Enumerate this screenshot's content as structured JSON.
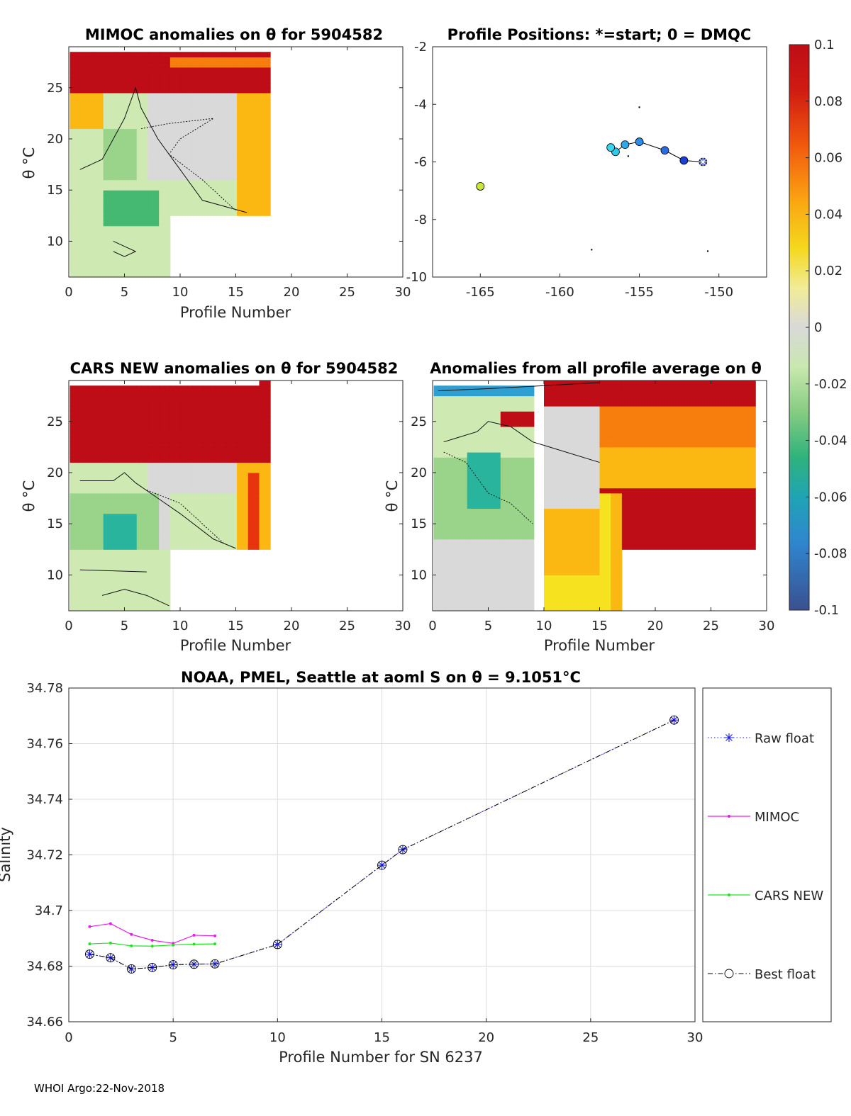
{
  "colors": {
    "ramp": [
      "#3a5a9b",
      "#3f78c4",
      "#2e9fd0",
      "#29b49e",
      "#45b872",
      "#9ad48a",
      "#cfe9b3",
      "#d9d9d9",
      "#eef08e",
      "#f7e21f",
      "#fbb812",
      "#f77d0c",
      "#e8330f",
      "#be0d16"
    ],
    "raw": "#1a1ae6",
    "mimoc": "#e61ee6",
    "cars": "#1ee61e",
    "best": "#000000"
  },
  "chart_data": [
    {
      "type": "heatmap",
      "title": "MIMOC anomalies on θ  for 5904582",
      "xlabel": "Profile Number",
      "ylabel": "θ °C",
      "xlim": [
        0,
        30
      ],
      "ylim": [
        6.5,
        29
      ],
      "xticks": [
        "0",
        "5",
        "10",
        "15",
        "20",
        "25",
        "30"
      ],
      "yticks": [
        "10",
        "15",
        "20",
        "25"
      ]
    },
    {
      "type": "scatter",
      "title": "Profile Positions: *=start; 0 = DMQC",
      "xlim": [
        -168,
        -147
      ],
      "ylim": [
        -10,
        -2
      ],
      "xticks": [
        "-165",
        "-160",
        "-155",
        "-150"
      ],
      "yticks": [
        "-2",
        "-4",
        "-6",
        "-8",
        "-10"
      ],
      "points": [
        {
          "lon": -151.0,
          "lat": -6.0,
          "color": "#1a3fcf",
          "start": true
        },
        {
          "lon": -152.2,
          "lat": -5.95,
          "color": "#1a3fcf",
          "start": false
        },
        {
          "lon": -153.4,
          "lat": -5.6,
          "color": "#2a6be0",
          "start": false
        },
        {
          "lon": -155.0,
          "lat": -5.3,
          "color": "#2e8be8",
          "start": false
        },
        {
          "lon": -155.9,
          "lat": -5.4,
          "color": "#2fa8ea",
          "start": false
        },
        {
          "lon": -156.5,
          "lat": -5.65,
          "color": "#32c8ec",
          "start": false
        },
        {
          "lon": -156.8,
          "lat": -5.5,
          "color": "#38d6ee",
          "start": false
        },
        {
          "lon": -165.0,
          "lat": -6.85,
          "color": "#c8e63c",
          "start": false
        }
      ]
    },
    {
      "type": "heatmap",
      "title": "CARS NEW anomalies on θ for 5904582",
      "xlabel": "Profile Number",
      "ylabel": "θ °C",
      "xlim": [
        0,
        30
      ],
      "ylim": [
        6.5,
        29
      ],
      "xticks": [
        "0",
        "5",
        "10",
        "15",
        "20",
        "25",
        "30"
      ],
      "yticks": [
        "10",
        "15",
        "20",
        "25"
      ]
    },
    {
      "type": "heatmap",
      "title": "Anomalies from all profile average on θ",
      "xlabel": "Profile Number",
      "ylabel": "θ °C",
      "xlim": [
        0,
        30
      ],
      "ylim": [
        6.5,
        29
      ],
      "xticks": [
        "0",
        "5",
        "10",
        "15",
        "20",
        "25",
        "30"
      ],
      "yticks": [
        "10",
        "15",
        "20",
        "25"
      ]
    },
    {
      "type": "colorbar",
      "ticks": [
        "0.1",
        "0.08",
        "0.06",
        "0.04",
        "0.02",
        "0",
        "-0.02",
        "-0.04",
        "-0.06",
        "-0.08",
        "-0.1"
      ],
      "range": [
        -0.1,
        0.1
      ]
    },
    {
      "type": "line",
      "title": "NOAA, PMEL, Seattle at aoml S on θ = 9.1051°C",
      "xlabel": "Profile Number for SN 6237",
      "ylabel": "Salinity",
      "xlim": [
        0,
        30
      ],
      "ylim": [
        34.66,
        34.78
      ],
      "xticks": [
        "0",
        "5",
        "10",
        "15",
        "20",
        "25",
        "30"
      ],
      "yticks": [
        "34.66",
        "34.68",
        "34.7",
        "34.72",
        "34.74",
        "34.76",
        "34.78"
      ],
      "series": [
        {
          "name": "Raw float",
          "style": "raw",
          "x": [
            1,
            2,
            3,
            4,
            5,
            6,
            7,
            10,
            15,
            16,
            29
          ],
          "values": [
            34.6843,
            34.683,
            34.679,
            34.6795,
            34.6805,
            34.6807,
            34.6808,
            34.6878,
            34.7163,
            34.7219,
            34.7685
          ]
        },
        {
          "name": "MIMOC",
          "style": "mimoc",
          "x": [
            1,
            2,
            3,
            4,
            5,
            6,
            7
          ],
          "values": [
            34.6942,
            34.6953,
            34.6914,
            34.6893,
            34.6882,
            34.6911,
            34.6909
          ]
        },
        {
          "name": "CARS NEW",
          "style": "cars",
          "x": [
            1,
            2,
            3,
            4,
            5,
            6,
            7
          ],
          "values": [
            34.688,
            34.6883,
            34.6873,
            34.6872,
            34.6876,
            34.6879,
            34.688
          ]
        },
        {
          "name": "Best float",
          "style": "best",
          "x": [
            1,
            2,
            3,
            4,
            5,
            6,
            7,
            10,
            15,
            16,
            29
          ],
          "values": [
            34.6843,
            34.683,
            34.679,
            34.6795,
            34.6805,
            34.6807,
            34.6808,
            34.6878,
            34.7163,
            34.7219,
            34.7685
          ]
        }
      ]
    }
  ],
  "footer": "WHOI Argo:22-Nov-2018"
}
